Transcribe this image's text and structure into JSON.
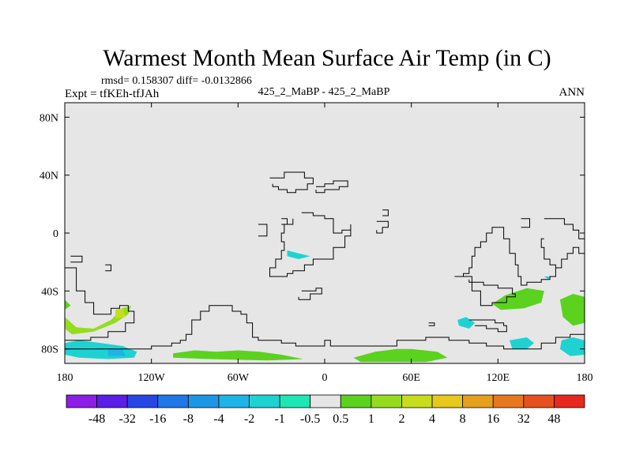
{
  "chart_data": {
    "type": "heatmap",
    "title": "Warmest Month Mean Surface Air Temp (in C)",
    "stats_line": "rmsd= 0.158307 diff= -0.0132866",
    "left_label": "Expt = tfKEh-tfJAh",
    "center_label": "425_2_MaBP - 425_2_MaBP",
    "right_label": "ANN",
    "x_ticks": [
      "180",
      "120W",
      "60W",
      "0",
      "60E",
      "120E",
      "180"
    ],
    "x_tick_values": [
      -180,
      -120,
      -60,
      0,
      60,
      120,
      180
    ],
    "y_ticks": [
      "80N",
      "40N",
      "0",
      "40S",
      "80S"
    ],
    "y_tick_values": [
      80,
      40,
      0,
      -40,
      -80
    ],
    "xlim": [
      -180,
      180
    ],
    "ylim": [
      -90,
      90
    ],
    "field_background_color": "#e6e6e6",
    "colorbar": {
      "labels": [
        "-48",
        "-32",
        "-16",
        "-8",
        "-4",
        "-2",
        "-1",
        "-0.5",
        "0.5",
        "1",
        "2",
        "4",
        "8",
        "16",
        "32",
        "48"
      ],
      "colors": [
        "#8c1ee6",
        "#5a1ee6",
        "#2846e6",
        "#1e78e6",
        "#1e96e6",
        "#1eb4e6",
        "#1ed2d2",
        "#1ee6b4",
        "#e6e6e6",
        "#5ad21e",
        "#96dc1e",
        "#c8dc1e",
        "#e6c81e",
        "#e6a01e",
        "#e6781e",
        "#e6501e",
        "#e6281e"
      ]
    },
    "anomaly_patches": [
      {
        "value": 1.5,
        "color": "#96dc1e",
        "points": [
          [
            -180,
            -58
          ],
          [
            -172,
            -65
          ],
          [
            -160,
            -66
          ],
          [
            -148,
            -60
          ],
          [
            -140,
            -52
          ],
          [
            -134,
            -50
          ],
          [
            -136,
            -56
          ],
          [
            -145,
            -62
          ],
          [
            -160,
            -68
          ],
          [
            -175,
            -70
          ],
          [
            -180,
            -66
          ]
        ]
      },
      {
        "value": 1,
        "color": "#5ad21e",
        "points": [
          [
            -180,
            -46
          ],
          [
            -176,
            -50
          ],
          [
            -180,
            -53
          ]
        ]
      },
      {
        "value": 2.5,
        "color": "#c8dc1e",
        "points": [
          [
            -145,
            -53
          ],
          [
            -140,
            -52
          ],
          [
            -138,
            -58
          ],
          [
            -145,
            -59
          ]
        ]
      },
      {
        "value": -1,
        "color": "#1ed2d2",
        "points": [
          [
            -180,
            -76
          ],
          [
            -170,
            -74
          ],
          [
            -155,
            -76
          ],
          [
            -140,
            -78
          ],
          [
            -130,
            -82
          ],
          [
            -132,
            -86
          ],
          [
            -150,
            -87
          ],
          [
            -170,
            -86
          ],
          [
            -180,
            -84
          ]
        ]
      },
      {
        "value": -2,
        "color": "#1eb4e6",
        "points": [
          [
            -150,
            -80
          ],
          [
            -140,
            -80
          ],
          [
            -138,
            -85
          ],
          [
            -150,
            -85
          ]
        ]
      },
      {
        "value": 1,
        "color": "#5ad21e",
        "points": [
          [
            -105,
            -83
          ],
          [
            -90,
            -81
          ],
          [
            -75,
            -82
          ],
          [
            -60,
            -81
          ],
          [
            -45,
            -82
          ],
          [
            -30,
            -84
          ],
          [
            -15,
            -87
          ],
          [
            -40,
            -88
          ],
          [
            -80,
            -87
          ],
          [
            -105,
            -86
          ]
        ]
      },
      {
        "value": 1,
        "color": "#5ad21e",
        "points": [
          [
            20,
            -86
          ],
          [
            35,
            -82
          ],
          [
            50,
            -80
          ],
          [
            60,
            -80
          ],
          [
            78,
            -82
          ],
          [
            85,
            -86
          ],
          [
            70,
            -89
          ],
          [
            45,
            -89
          ],
          [
            25,
            -89
          ]
        ]
      },
      {
        "value": 1,
        "color": "#5ad21e",
        "points": [
          [
            116,
            -49
          ],
          [
            125,
            -43
          ],
          [
            140,
            -38
          ],
          [
            152,
            -40
          ],
          [
            150,
            -48
          ],
          [
            138,
            -52
          ],
          [
            122,
            -53
          ]
        ]
      },
      {
        "value": 1,
        "color": "#5ad21e",
        "points": [
          [
            163,
            -46
          ],
          [
            172,
            -42
          ],
          [
            180,
            -44
          ],
          [
            180,
            -62
          ],
          [
            172,
            -64
          ],
          [
            165,
            -58
          ]
        ]
      },
      {
        "value": -1,
        "color": "#1ed2d2",
        "points": [
          [
            92,
            -60
          ],
          [
            98,
            -58
          ],
          [
            104,
            -62
          ],
          [
            100,
            -66
          ],
          [
            93,
            -64
          ]
        ]
      },
      {
        "value": -1,
        "color": "#1ed2d2",
        "points": [
          [
            128,
            -74
          ],
          [
            140,
            -72
          ],
          [
            145,
            -76
          ],
          [
            140,
            -80
          ],
          [
            130,
            -80
          ]
        ]
      },
      {
        "value": -1,
        "color": "#1ed2d2",
        "points": [
          [
            164,
            -74
          ],
          [
            172,
            -72
          ],
          [
            180,
            -74
          ],
          [
            180,
            -84
          ],
          [
            170,
            -85
          ],
          [
            163,
            -80
          ]
        ]
      },
      {
        "value": -1,
        "color": "#1ed2d2",
        "points": [
          [
            -26,
            -12
          ],
          [
            -18,
            -14
          ],
          [
            -10,
            -16
          ],
          [
            -18,
            -18
          ],
          [
            -26,
            -16
          ]
        ]
      },
      {
        "value": -1,
        "color": "#1ed2d2",
        "points": [
          [
            152,
            -30
          ],
          [
            156,
            -30
          ],
          [
            155,
            -32
          ]
        ]
      }
    ],
    "continent_outlines": [
      [
        [
          -180,
          -24
        ],
        [
          -172,
          -24
        ],
        [
          -172,
          -40
        ],
        [
          -166,
          -40
        ],
        [
          -166,
          -48
        ],
        [
          -160,
          -48
        ],
        [
          -160,
          -56
        ],
        [
          -152,
          -56
        ],
        [
          -148,
          -52
        ],
        [
          -142,
          -50
        ],
        [
          -136,
          -54
        ],
        [
          -132,
          -62
        ],
        [
          -138,
          -68
        ],
        [
          -150,
          -72
        ],
        [
          -162,
          -74
        ],
        [
          -180,
          -74
        ]
      ],
      [
        [
          -180,
          -80
        ],
        [
          -140,
          -80
        ],
        [
          -120,
          -78
        ],
        [
          -106,
          -76
        ],
        [
          -100,
          -74
        ],
        [
          -96,
          -70
        ],
        [
          -92,
          -60
        ],
        [
          -86,
          -54
        ],
        [
          -80,
          -50
        ],
        [
          -68,
          -50
        ],
        [
          -64,
          -54
        ],
        [
          -58,
          -56
        ],
        [
          -54,
          -62
        ],
        [
          -50,
          -72
        ],
        [
          -46,
          -74
        ],
        [
          -38,
          -74
        ],
        [
          -30,
          -76
        ],
        [
          -20,
          -78
        ],
        [
          0,
          -78
        ],
        [
          0,
          -74
        ],
        [
          4,
          -74
        ],
        [
          4,
          -78
        ],
        [
          30,
          -78
        ],
        [
          50,
          -74
        ],
        [
          70,
          -72
        ],
        [
          80,
          -72
        ],
        [
          86,
          -74
        ],
        [
          100,
          -76
        ],
        [
          112,
          -78
        ],
        [
          124,
          -80
        ],
        [
          140,
          -80
        ],
        [
          150,
          -76
        ],
        [
          160,
          -72
        ],
        [
          170,
          -70
        ],
        [
          180,
          -70
        ]
      ],
      [
        [
          -176,
          -16
        ],
        [
          -168,
          -16
        ],
        [
          -168,
          -20
        ],
        [
          -176,
          -20
        ]
      ],
      [
        [
          -152,
          -22
        ],
        [
          -148,
          -22
        ],
        [
          -148,
          -26
        ],
        [
          -152,
          -26
        ]
      ],
      [
        [
          -38,
          38
        ],
        [
          -30,
          38
        ],
        [
          -28,
          42
        ],
        [
          -16,
          42
        ],
        [
          -14,
          38
        ],
        [
          -8,
          34
        ],
        [
          -12,
          30
        ],
        [
          -20,
          28
        ],
        [
          -26,
          30
        ],
        [
          -32,
          32
        ],
        [
          -36,
          34
        ]
      ],
      [
        [
          -6,
          32
        ],
        [
          0,
          34
        ],
        [
          6,
          36
        ],
        [
          14,
          36
        ],
        [
          16,
          32
        ],
        [
          10,
          30
        ],
        [
          0,
          28
        ],
        [
          -6,
          30
        ]
      ],
      [
        [
          -16,
          14
        ],
        [
          -8,
          12
        ],
        [
          0,
          10
        ],
        [
          6,
          8
        ],
        [
          6,
          0
        ],
        [
          12,
          2
        ],
        [
          18,
          6
        ],
        [
          18,
          -2
        ],
        [
          14,
          -10
        ],
        [
          6,
          -18
        ],
        [
          -2,
          -18
        ],
        [
          -8,
          -22
        ],
        [
          -14,
          -26
        ],
        [
          -22,
          -28
        ],
        [
          -26,
          -30
        ],
        [
          -34,
          -30
        ],
        [
          -38,
          -24
        ],
        [
          -34,
          -18
        ],
        [
          -30,
          -12
        ],
        [
          -28,
          -6
        ],
        [
          -30,
          0
        ],
        [
          -28,
          6
        ],
        [
          -22,
          10
        ]
      ],
      [
        [
          -46,
          6
        ],
        [
          -40,
          6
        ],
        [
          -40,
          -2
        ],
        [
          -46,
          -2
        ]
      ],
      [
        [
          -30,
          10
        ],
        [
          -26,
          10
        ],
        [
          -26,
          6
        ],
        [
          -30,
          6
        ]
      ],
      [
        [
          -16,
          -40
        ],
        [
          -6,
          -38
        ],
        [
          -2,
          -42
        ],
        [
          -10,
          -46
        ],
        [
          -18,
          -44
        ]
      ],
      [
        [
          36,
          8
        ],
        [
          42,
          8
        ],
        [
          44,
          4
        ],
        [
          40,
          0
        ],
        [
          36,
          2
        ]
      ],
      [
        [
          40,
          16
        ],
        [
          44,
          16
        ],
        [
          44,
          12
        ],
        [
          40,
          12
        ]
      ],
      [
        [
          72,
          -62
        ],
        [
          76,
          -62
        ],
        [
          76,
          -64
        ],
        [
          72,
          -64
        ]
      ],
      [
        [
          100,
          -60
        ],
        [
          110,
          -60
        ],
        [
          118,
          -62
        ],
        [
          124,
          -64
        ],
        [
          126,
          -68
        ],
        [
          120,
          -66
        ],
        [
          112,
          -64
        ],
        [
          104,
          -64
        ]
      ],
      [
        [
          90,
          -30
        ],
        [
          96,
          -28
        ],
        [
          100,
          -24
        ],
        [
          102,
          -16
        ],
        [
          104,
          -10
        ],
        [
          108,
          -6
        ],
        [
          112,
          0
        ],
        [
          116,
          4
        ],
        [
          124,
          4
        ],
        [
          124,
          -4
        ],
        [
          128,
          -14
        ],
        [
          132,
          -22
        ],
        [
          134,
          -30
        ],
        [
          136,
          -36
        ],
        [
          140,
          -34
        ],
        [
          150,
          -32
        ],
        [
          156,
          -30
        ],
        [
          160,
          -24
        ],
        [
          164,
          -18
        ],
        [
          168,
          -14
        ],
        [
          172,
          -10
        ],
        [
          176,
          -14
        ],
        [
          180,
          -18
        ]
      ],
      [
        [
          90,
          -30
        ],
        [
          102,
          -40
        ],
        [
          108,
          -50
        ],
        [
          116,
          -48
        ],
        [
          126,
          -44
        ],
        [
          132,
          -42
        ],
        [
          130,
          -38
        ],
        [
          120,
          -36
        ],
        [
          110,
          -34
        ],
        [
          100,
          -32
        ]
      ],
      [
        [
          152,
          10
        ],
        [
          160,
          10
        ],
        [
          166,
          6
        ],
        [
          172,
          2
        ],
        [
          176,
          -4
        ],
        [
          180,
          -10
        ],
        [
          180,
          -14
        ]
      ],
      [
        [
          136,
          10
        ],
        [
          142,
          10
        ],
        [
          142,
          4
        ],
        [
          136,
          4
        ]
      ],
      [
        [
          152,
          -4
        ],
        [
          150,
          -10
        ],
        [
          152,
          -18
        ],
        [
          156,
          -22
        ],
        [
          160,
          -24
        ]
      ]
    ]
  }
}
